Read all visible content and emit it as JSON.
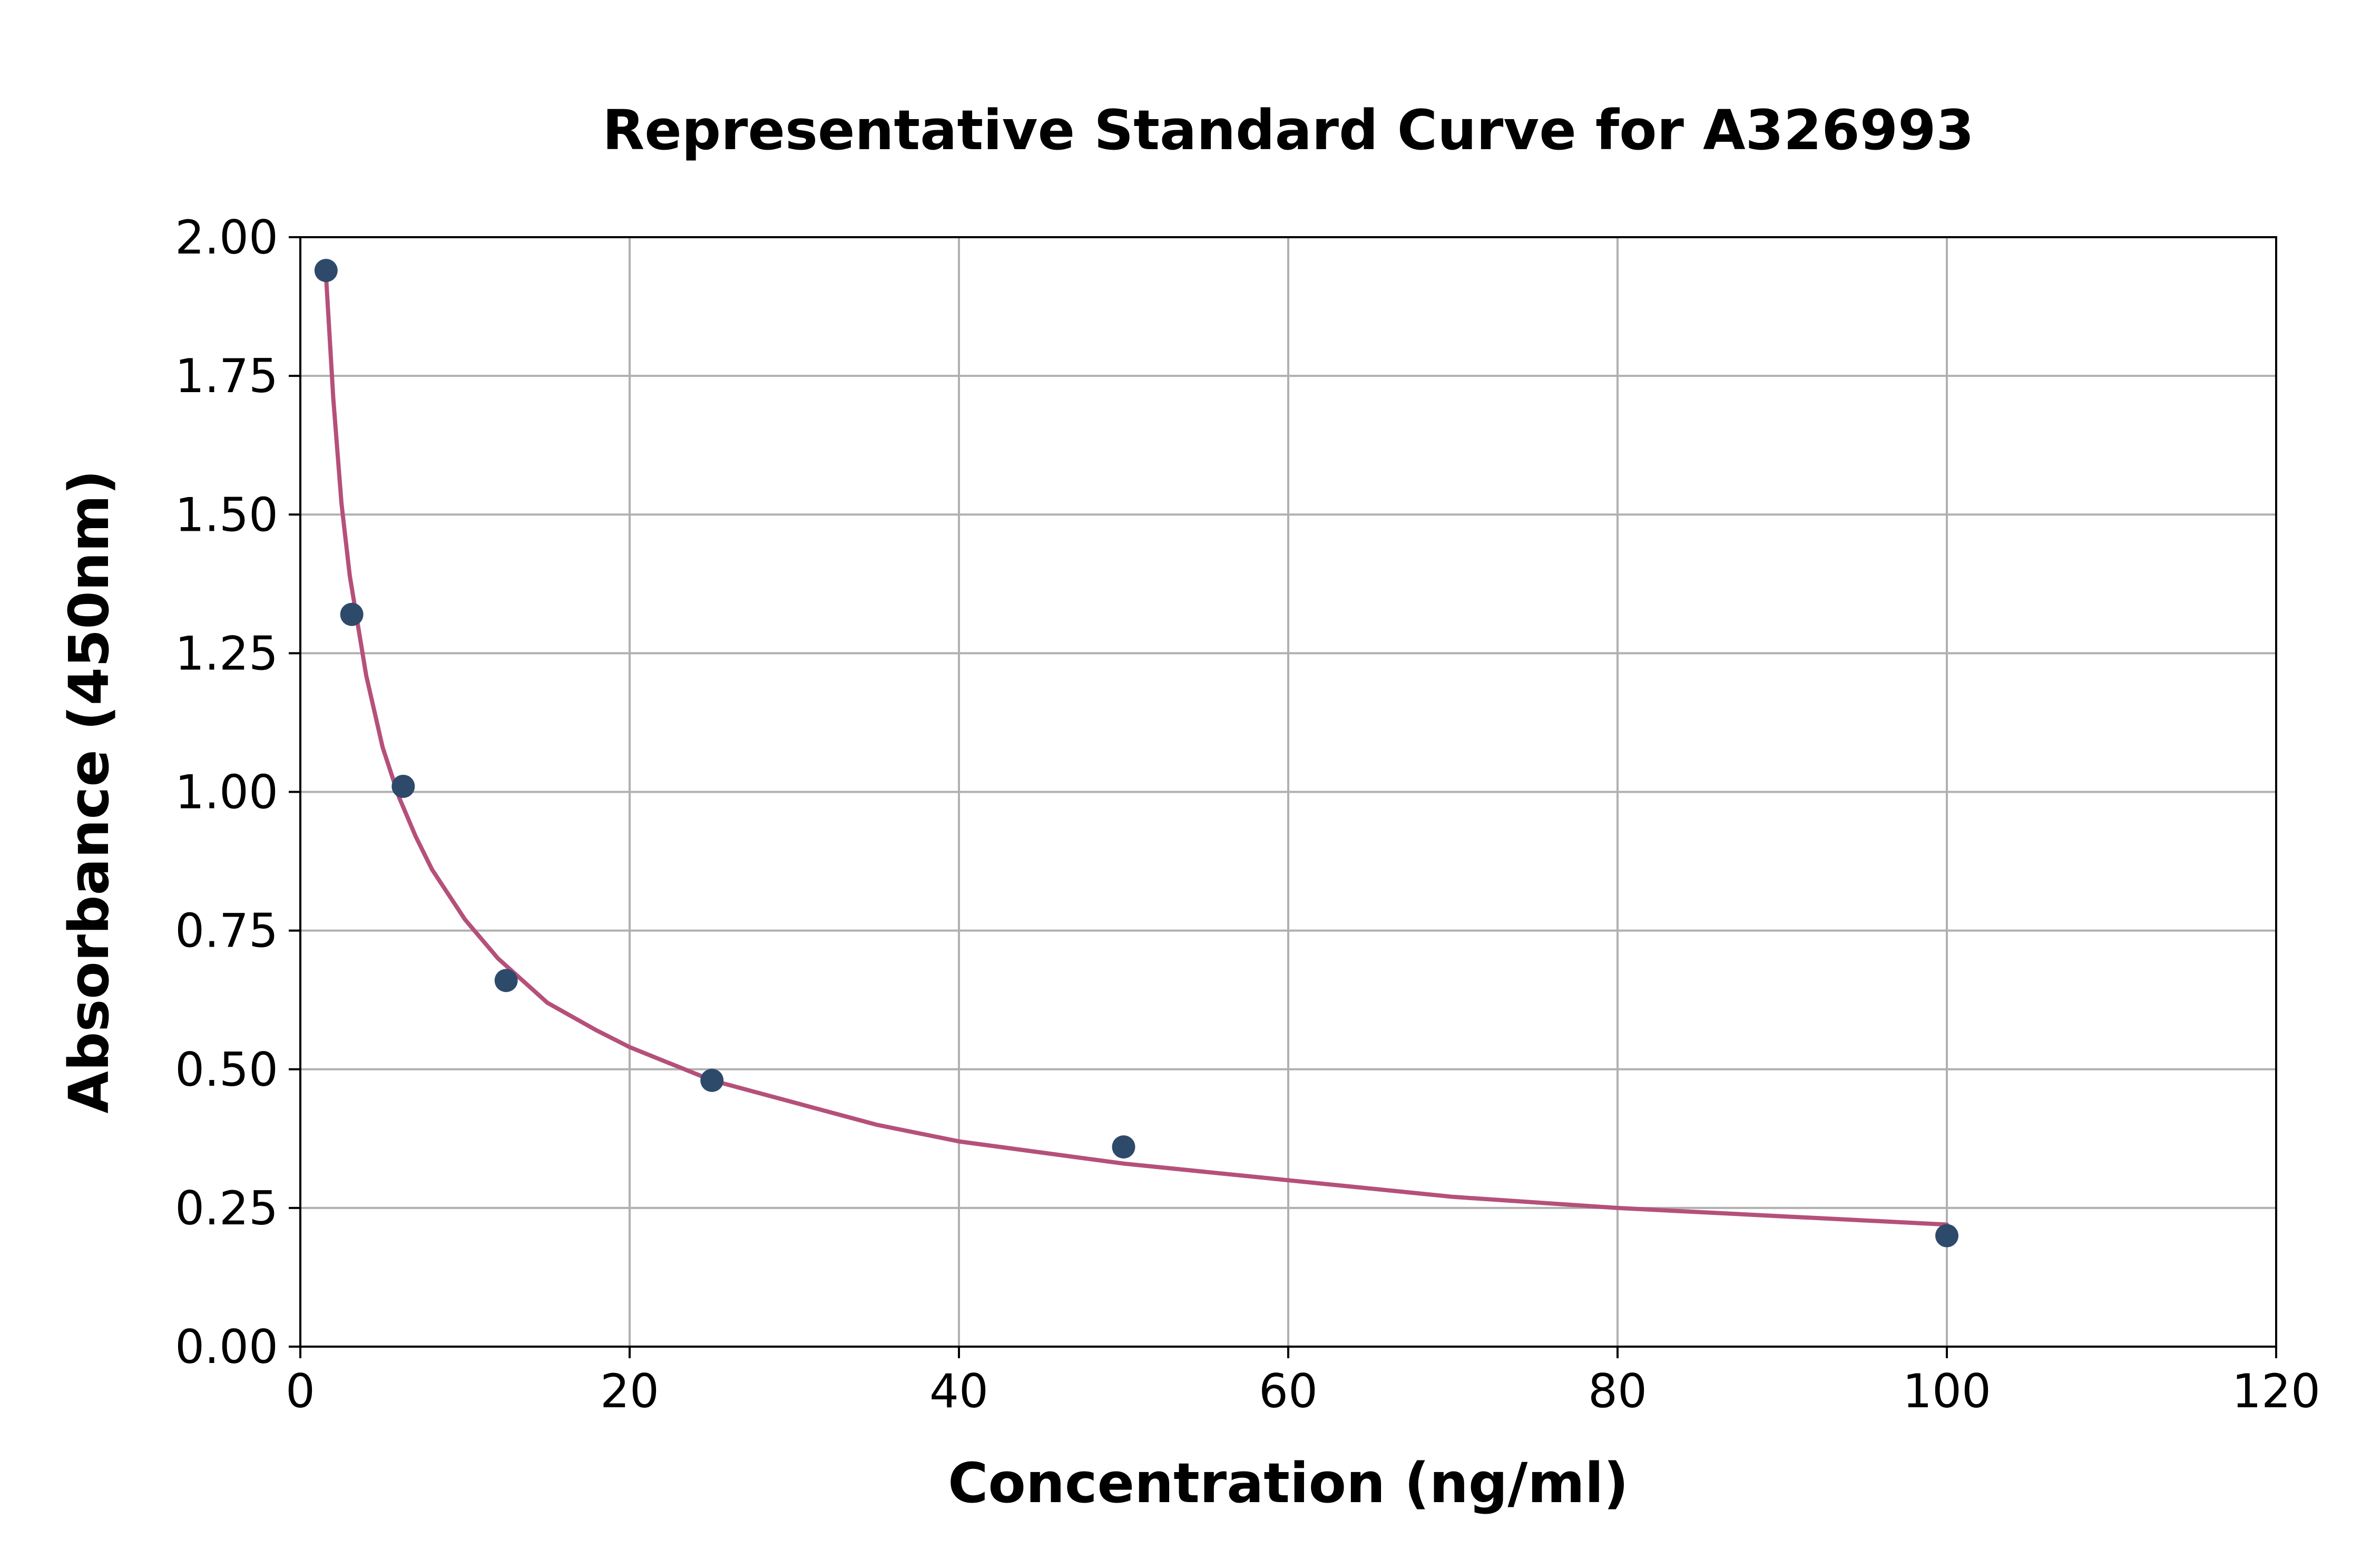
{
  "chart_data": {
    "type": "scatter",
    "title": "Representative Standard Curve for A326993",
    "xlabel": "Concentration (ng/ml)",
    "ylabel": "Absorbance (450nm)",
    "xlim": [
      0,
      120
    ],
    "ylim": [
      0,
      2.0
    ],
    "x_ticks": [
      "0",
      "20",
      "40",
      "60",
      "80",
      "100",
      "120"
    ],
    "y_ticks": [
      "0.00",
      "0.25",
      "0.50",
      "0.75",
      "1.00",
      "1.25",
      "1.50",
      "1.75",
      "2.00"
    ],
    "grid": true,
    "legend": "none",
    "points": {
      "x": [
        1.5625,
        3.125,
        6.25,
        12.5,
        25,
        50,
        100
      ],
      "y": [
        1.94,
        1.32,
        1.01,
        0.66,
        0.48,
        0.36,
        0.2
      ],
      "color": "#2e4a6b"
    },
    "fit_curve": {
      "x": [
        1.5625,
        2,
        2.5,
        3,
        4,
        5,
        6,
        7,
        8,
        10,
        12,
        15,
        18,
        20,
        25,
        30,
        35,
        40,
        50,
        60,
        70,
        80,
        90,
        100
      ],
      "y": [
        1.93,
        1.71,
        1.52,
        1.39,
        1.21,
        1.08,
        0.99,
        0.92,
        0.86,
        0.77,
        0.7,
        0.62,
        0.57,
        0.54,
        0.48,
        0.44,
        0.4,
        0.37,
        0.33,
        0.3,
        0.27,
        0.25,
        0.235,
        0.22
      ],
      "color": "#b5507a"
    }
  }
}
